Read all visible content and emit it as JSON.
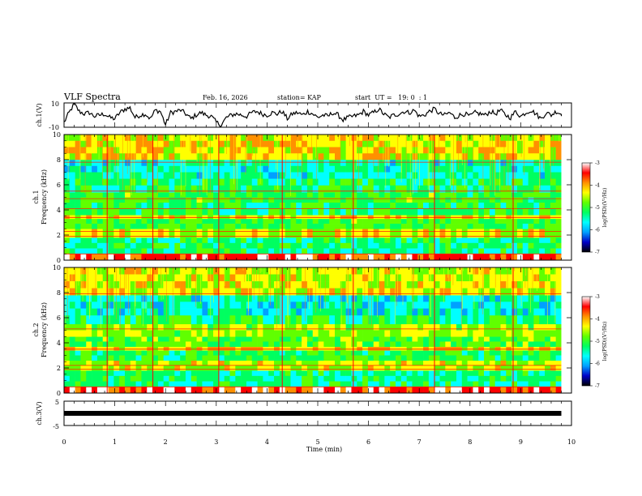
{
  "header": {
    "title": "VLF Spectra",
    "date": "Feb. 16, 2026",
    "station": "station= KAP",
    "start": "start  UT =   19: 0  : 1"
  },
  "chart_data": [
    {
      "type": "line",
      "name": "ch1-voltage",
      "ylabel": "ch.1(V)",
      "ylim": [
        -10,
        10
      ],
      "yticks": [
        "10",
        "-10"
      ],
      "xlim": [
        0,
        10
      ],
      "x": [
        0.0,
        0.1,
        0.2,
        0.3,
        0.4,
        0.5,
        0.6,
        0.7,
        0.8,
        0.9,
        1.0,
        1.1,
        1.2,
        1.3,
        1.4,
        1.5,
        1.6,
        1.7,
        1.8,
        1.9,
        2.0,
        2.1,
        2.2,
        2.3,
        2.4,
        2.5,
        2.6,
        2.7,
        2.8,
        2.9,
        3.0,
        3.1,
        3.2,
        3.3,
        3.4,
        3.5,
        3.6,
        3.7,
        3.8,
        3.9,
        4.0,
        4.1,
        4.2,
        4.3,
        4.4,
        4.5,
        4.6,
        4.7,
        4.8,
        4.9,
        5.0,
        5.1,
        5.2,
        5.3,
        5.4,
        5.5,
        5.6,
        5.7,
        5.8,
        5.9,
        6.0,
        6.1,
        6.2,
        6.3,
        6.4,
        6.5,
        6.6,
        6.7,
        6.8,
        6.9,
        7.0,
        7.1,
        7.2,
        7.3,
        7.4,
        7.5,
        7.6,
        7.7,
        7.8,
        7.9,
        8.0,
        8.1,
        8.2,
        8.3,
        8.4,
        8.5,
        8.6,
        8.7,
        8.8,
        8.9,
        9.0,
        9.1,
        9.2,
        9.3,
        9.4,
        9.5,
        9.6,
        9.7,
        9.8
      ],
      "y": [
        -6,
        2,
        9,
        3,
        1,
        2,
        -1,
        0,
        1,
        -2,
        -3,
        2,
        5,
        6,
        -2,
        0,
        1,
        -3,
        4,
        3,
        -8,
        2,
        3,
        4,
        1,
        -3,
        0,
        2,
        0,
        -1,
        -6,
        -8,
        -2,
        0,
        1,
        0,
        -1,
        2,
        3,
        1,
        0,
        2,
        1,
        3,
        -3,
        1,
        2,
        0,
        3,
        1,
        -2,
        0,
        -1,
        2,
        0,
        -4,
        -2,
        -1,
        0,
        3,
        0,
        2,
        5,
        1,
        -2,
        0,
        1,
        3,
        2,
        4,
        -1,
        0,
        3,
        5,
        1,
        0,
        2,
        -2,
        0,
        1,
        -1,
        2,
        1,
        0,
        3,
        1,
        4,
        0,
        -2,
        3,
        -1,
        2,
        4,
        1,
        -3,
        2,
        0,
        3,
        1
      ]
    },
    {
      "type": "heatmap",
      "name": "ch1-spectrogram",
      "ylabel": "ch.1\nFrequency (kHz)",
      "ylim": [
        0,
        10
      ],
      "xlim": [
        0,
        10
      ],
      "yticks": [
        "0",
        "2",
        "4",
        "6",
        "8",
        "10"
      ],
      "bands_khz": [
        {
          "f0": 0.0,
          "f1": 0.5,
          "level": -3.5
        },
        {
          "f0": 0.5,
          "f1": 1.8,
          "level": -5.3
        },
        {
          "f0": 1.8,
          "f1": 2.5,
          "level": -4.4
        },
        {
          "f0": 2.5,
          "f1": 3.3,
          "level": -5.0
        },
        {
          "f0": 3.3,
          "f1": 3.6,
          "level": -4.3
        },
        {
          "f0": 3.6,
          "f1": 4.6,
          "level": -5.1
        },
        {
          "f0": 4.6,
          "f1": 5.4,
          "level": -5.0
        },
        {
          "f0": 5.4,
          "f1": 6.5,
          "level": -5.2
        },
        {
          "f0": 6.5,
          "f1": 8.0,
          "level": -5.5
        },
        {
          "f0": 8.0,
          "f1": 10.0,
          "level": -4.3
        }
      ],
      "lines_khz": [
        0.5,
        1.9,
        2.3,
        3.4,
        4.1,
        4.9,
        5.5,
        7.8
      ],
      "impulses_min": [
        0.85,
        1.75,
        3.05,
        4.3,
        5.7,
        7.3,
        8.85
      ]
    },
    {
      "type": "heatmap",
      "name": "ch2-spectrogram",
      "ylabel": "ch.2\nFrequency (kHz)",
      "ylim": [
        0,
        10
      ],
      "xlim": [
        0,
        10
      ],
      "yticks": [
        "0",
        "2",
        "4",
        "6",
        "8",
        "10"
      ],
      "bands_khz": [
        {
          "f0": 0.0,
          "f1": 0.5,
          "level": -3.5
        },
        {
          "f0": 0.5,
          "f1": 1.8,
          "level": -5.3
        },
        {
          "f0": 1.8,
          "f1": 2.6,
          "level": -4.5
        },
        {
          "f0": 2.6,
          "f1": 3.4,
          "level": -5.1
        },
        {
          "f0": 3.4,
          "f1": 3.7,
          "level": -4.2
        },
        {
          "f0": 3.7,
          "f1": 4.5,
          "level": -4.9
        },
        {
          "f0": 4.5,
          "f1": 5.5,
          "level": -4.6
        },
        {
          "f0": 5.5,
          "f1": 6.2,
          "level": -5.2
        },
        {
          "f0": 6.2,
          "f1": 7.8,
          "level": -5.6
        },
        {
          "f0": 7.8,
          "f1": 10.0,
          "level": -4.4
        }
      ],
      "lines_khz": [
        0.5,
        1.9,
        2.2,
        3.5,
        5.1,
        7.9
      ],
      "impulses_min": [
        0.85,
        1.75,
        3.05,
        4.3,
        5.7,
        7.3,
        8.85
      ]
    },
    {
      "type": "line",
      "name": "ch3-voltage",
      "ylabel": "ch.3(V)",
      "ylim": [
        -5,
        5
      ],
      "yticks": [
        "5",
        "-5"
      ],
      "xlim": [
        0,
        10
      ],
      "x": [
        0,
        9.8
      ],
      "y": [
        0,
        0
      ]
    }
  ],
  "x_axis": {
    "label": "Time (min)",
    "ticks": [
      "0",
      "1",
      "2",
      "3",
      "4",
      "5",
      "6",
      "7",
      "8",
      "9",
      "10"
    ]
  },
  "colorbar": {
    "label": "log(PSD)(V²/Hz)",
    "range": [
      -7,
      -3
    ],
    "ticks": [
      "-3",
      "-4",
      "-5",
      "-6",
      "-7"
    ],
    "colors": [
      "#000000",
      "#0000c8",
      "#00a0ff",
      "#00ffff",
      "#00ff60",
      "#60ff00",
      "#ffff00",
      "#ff9000",
      "#ff0000",
      "#ffffff"
    ]
  }
}
